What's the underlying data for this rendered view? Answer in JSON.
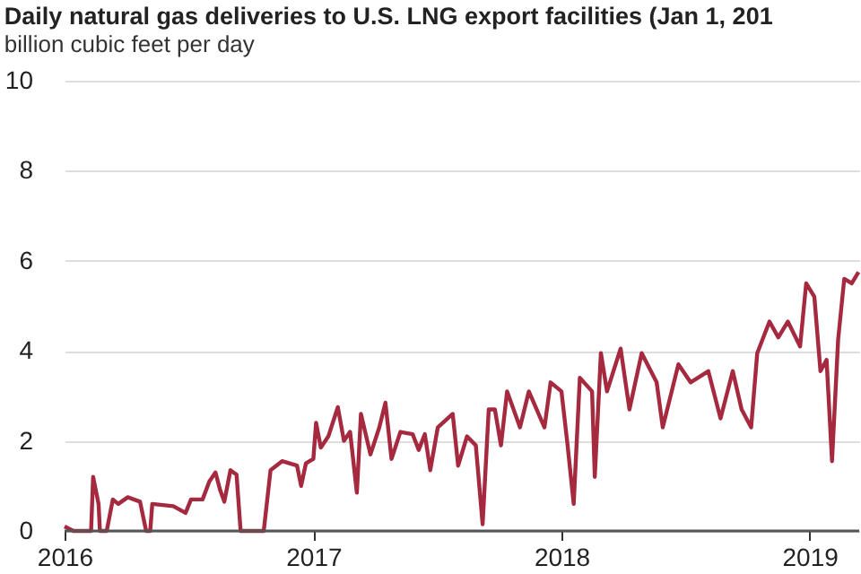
{
  "chart_data": {
    "type": "line",
    "title": "Daily natural gas deliveries to U.S. LNG export facilities (Jan 1, 201",
    "subtitle": "billion cubic feet per day",
    "x": [
      "2016-01-01",
      "2016-01-14",
      "2016-02-09",
      "2016-02-12",
      "2016-02-20",
      "2016-02-22",
      "2016-03-03",
      "2016-03-12",
      "2016-03-20",
      "2016-04-03",
      "2016-04-21",
      "2016-04-30",
      "2016-05-06",
      "2016-05-09",
      "2016-06-09",
      "2016-06-27",
      "2016-07-05",
      "2016-07-22",
      "2016-08-01",
      "2016-08-10",
      "2016-08-17",
      "2016-08-23",
      "2016-09-01",
      "2016-09-10",
      "2016-09-16",
      "2016-10-20",
      "2016-10-30",
      "2016-11-16",
      "2016-12-08",
      "2016-12-14",
      "2016-12-21",
      "2017-01-01",
      "2017-01-05",
      "2017-01-12",
      "2017-01-23",
      "2017-02-06",
      "2017-02-15",
      "2017-02-24",
      "2017-03-06",
      "2017-03-12",
      "2017-03-26",
      "2017-04-08",
      "2017-04-17",
      "2017-04-26",
      "2017-05-09",
      "2017-05-27",
      "2017-06-05",
      "2017-06-14",
      "2017-06-22",
      "2017-07-03",
      "2017-07-25",
      "2017-08-02",
      "2017-08-15",
      "2017-08-28",
      "2017-09-07",
      "2017-09-16",
      "2017-09-25",
      "2017-10-04",
      "2017-10-13",
      "2017-11-01",
      "2017-11-14",
      "2017-12-07",
      "2017-12-16",
      "2018-01-01",
      "2018-01-10",
      "2018-01-19",
      "2018-01-28",
      "2018-02-15",
      "2018-02-19",
      "2018-02-28",
      "2018-03-09",
      "2018-03-29",
      "2018-04-11",
      "2018-04-29",
      "2018-05-21",
      "2018-05-30",
      "2018-06-22",
      "2018-07-10",
      "2018-08-05",
      "2018-08-23",
      "2018-09-10",
      "2018-09-23",
      "2018-10-07",
      "2018-10-16",
      "2018-11-03",
      "2018-11-16",
      "2018-11-30",
      "2018-12-18",
      "2018-12-27",
      "2019-01-08",
      "2019-01-17",
      "2019-01-26",
      "2019-02-03",
      "2019-02-12",
      "2019-02-21",
      "2019-03-04",
      "2019-03-14"
    ],
    "series": [
      {
        "color": "#a52a3f",
        "values": [
          0.1,
          0,
          0,
          1.2,
          0.6,
          0,
          0,
          0.7,
          0.6,
          0.75,
          0.65,
          0,
          0,
          0.6,
          0.55,
          0.4,
          0.7,
          0.7,
          1.1,
          1.3,
          0.9,
          0.65,
          1.35,
          1.25,
          0,
          0,
          1.35,
          1.55,
          1.45,
          1.0,
          1.5,
          1.6,
          2.4,
          1.85,
          2.1,
          2.75,
          2.0,
          2.2,
          0.85,
          2.6,
          1.7,
          2.3,
          2.85,
          1.6,
          2.2,
          2.15,
          1.8,
          2.15,
          1.35,
          2.3,
          2.6,
          1.45,
          2.1,
          1.9,
          0.15,
          2.7,
          2.7,
          1.9,
          3.1,
          2.3,
          3.1,
          2.3,
          3.3,
          3.1,
          1.9,
          0.6,
          3.4,
          3.1,
          1.2,
          3.95,
          3.1,
          4.05,
          2.7,
          3.95,
          3.3,
          2.3,
          3.7,
          3.3,
          3.55,
          2.5,
          3.55,
          2.7,
          2.3,
          3.95,
          4.65,
          4.3,
          4.65,
          4.1,
          5.5,
          5.2,
          3.55,
          3.8,
          1.55,
          4.25,
          5.6,
          5.5,
          5.75
        ]
      }
    ],
    "xlim": [
      "2016-01-01",
      "2019-03-15"
    ],
    "xticks": [
      {
        "value": "2016-01-01",
        "label": "2016"
      },
      {
        "value": "2017-01-01",
        "label": "2017"
      },
      {
        "value": "2018-01-01",
        "label": "2018"
      },
      {
        "value": "2019-01-01",
        "label": "2019"
      }
    ],
    "ylim": [
      0,
      10
    ],
    "yticks": [
      0,
      2,
      4,
      6,
      8,
      10
    ],
    "grid": "y",
    "marker": "none",
    "line_style": "solid"
  }
}
